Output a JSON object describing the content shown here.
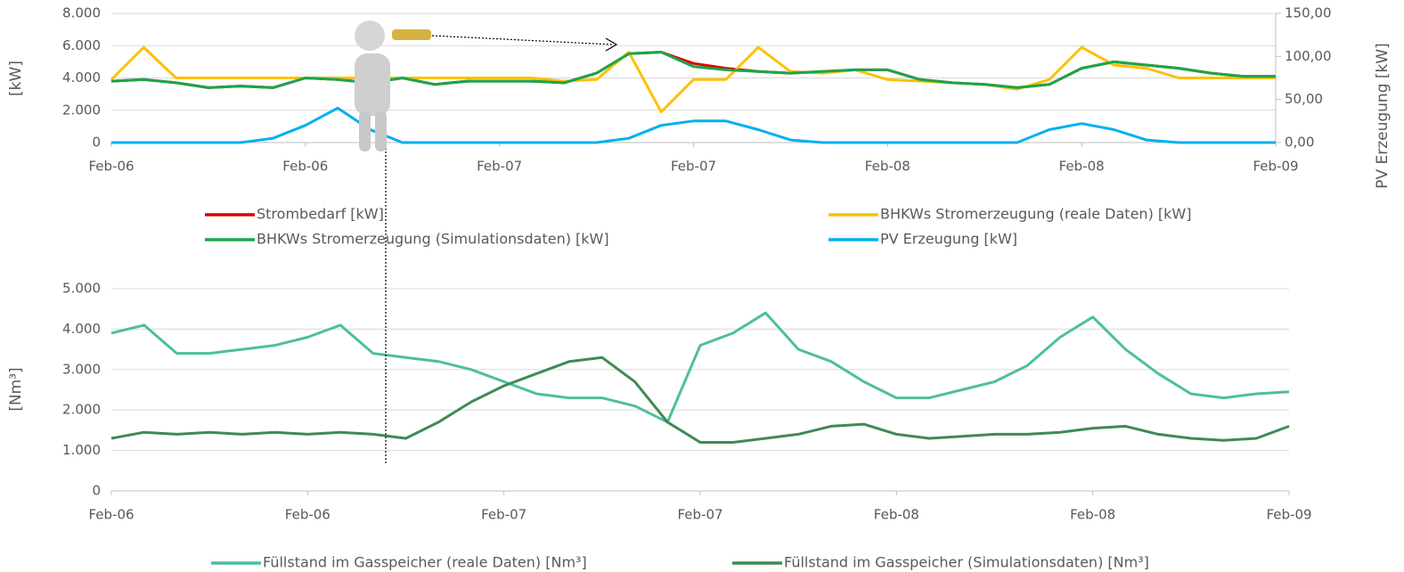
{
  "chart_data": [
    {
      "type": "line",
      "x": [
        0,
        2,
        4,
        6,
        8,
        10,
        12,
        14,
        16,
        18,
        20,
        22,
        24,
        26,
        28,
        30,
        32,
        34,
        36,
        38,
        40,
        42,
        44,
        46,
        48,
        50,
        52,
        54,
        56,
        58,
        60,
        62,
        64,
        66,
        68,
        70,
        72
      ],
      "xlim": [
        0,
        72
      ],
      "xticks": [
        {
          "value": 0,
          "label": "Feb-06"
        },
        {
          "value": 12,
          "label": "Feb-06"
        },
        {
          "value": 24,
          "label": "Feb-07"
        },
        {
          "value": 36,
          "label": "Feb-07"
        },
        {
          "value": 48,
          "label": "Feb-08"
        },
        {
          "value": 60,
          "label": "Feb-08"
        },
        {
          "value": 72,
          "label": "Feb-09"
        }
      ],
      "ylim": [
        0,
        8000
      ],
      "yticks": [
        0,
        {
          "value": 2000,
          "label": "2.000"
        },
        {
          "value": 4000,
          "label": "4.000"
        },
        {
          "value": 6000,
          "label": "6.000"
        },
        {
          "value": 8000,
          "label": "8.000"
        }
      ],
      "y2lim": [
        0,
        150
      ],
      "y2ticks": [
        {
          "value": 0,
          "label": "0,00"
        },
        {
          "value": 50,
          "label": "50,00"
        },
        {
          "value": 100,
          "label": "100,00"
        },
        {
          "value": 150,
          "label": "150,00"
        }
      ],
      "ylabel": "[kW]",
      "y2label": "PV Erzeugung [kW]",
      "grid": true,
      "series": [
        {
          "name": "Strombedarf [kW]",
          "color": "#e00000",
          "values": [
            3800,
            3900,
            3700,
            3400,
            3500,
            3400,
            4000,
            3900,
            3700,
            4000,
            3600,
            3800,
            3800,
            3800,
            3700,
            4300,
            5500,
            5600,
            4900,
            4600,
            4400,
            4300,
            4400,
            4500,
            4500,
            3900,
            3700,
            3600,
            3400,
            3600,
            4600,
            5000,
            4800,
            4600,
            4300,
            4100,
            4100
          ]
        },
        {
          "name": "BHKWs Stromerzeugung (reale Daten) [kW]",
          "color": "#ffc000",
          "values": [
            3900,
            5900,
            4000,
            4000,
            4000,
            4000,
            4000,
            4000,
            4000,
            4000,
            4000,
            4000,
            4000,
            4000,
            3800,
            3900,
            5600,
            1900,
            3900,
            3900,
            5900,
            4400,
            4300,
            4500,
            3900,
            3800,
            3700,
            3600,
            3300,
            3900,
            5900,
            4800,
            4600,
            4000,
            4000,
            4000,
            4000
          ]
        },
        {
          "name": "BHKWs Stromerzeugung (Simulationsdaten) [kW]",
          "color": "#1aa64a",
          "values": [
            3800,
            3900,
            3700,
            3400,
            3500,
            3400,
            4000,
            3900,
            3700,
            4000,
            3600,
            3800,
            3800,
            3800,
            3700,
            4300,
            5500,
            5600,
            4700,
            4500,
            4400,
            4300,
            4400,
            4500,
            4500,
            3900,
            3700,
            3600,
            3400,
            3600,
            4600,
            5000,
            4800,
            4600,
            4300,
            4100,
            4100
          ]
        },
        {
          "name": "PV Erzeugung [kW]",
          "color": "#00b0f0",
          "axis": "y2",
          "values": [
            0,
            0,
            0,
            0,
            0,
            5,
            20,
            40,
            15,
            0,
            0,
            0,
            0,
            0,
            0,
            0,
            5,
            20,
            25,
            25,
            15,
            3,
            0,
            0,
            0,
            0,
            0,
            0,
            0,
            15,
            22,
            15,
            3,
            0,
            0,
            0,
            0
          ]
        }
      ]
    },
    {
      "type": "line",
      "x": [
        0,
        2,
        4,
        6,
        8,
        10,
        12,
        14,
        16,
        18,
        20,
        22,
        24,
        26,
        28,
        30,
        32,
        34,
        36,
        38,
        40,
        42,
        44,
        46,
        48,
        50,
        52,
        54,
        56,
        58,
        60,
        62,
        64,
        66,
        68,
        70,
        72
      ],
      "xlim": [
        0,
        72
      ],
      "xticks": [
        {
          "value": 0,
          "label": "Feb-06"
        },
        {
          "value": 12,
          "label": "Feb-06"
        },
        {
          "value": 24,
          "label": "Feb-07"
        },
        {
          "value": 36,
          "label": "Feb-07"
        },
        {
          "value": 48,
          "label": "Feb-08"
        },
        {
          "value": 60,
          "label": "Feb-08"
        },
        {
          "value": 72,
          "label": "Feb-09"
        }
      ],
      "ylim": [
        0,
        5000
      ],
      "yticks": [
        0,
        {
          "value": 1000,
          "label": "1.000"
        },
        {
          "value": 2000,
          "label": "2.000"
        },
        {
          "value": 3000,
          "label": "3.000"
        },
        {
          "value": 4000,
          "label": "4.000"
        },
        {
          "value": 5000,
          "label": "5.000"
        }
      ],
      "ylabel": "[Nm³]",
      "grid": true,
      "series": [
        {
          "name": "Füllstand im Gasspeicher (reale Daten) [Nm³]",
          "color": "#4dbf9a",
          "values": [
            3900,
            4100,
            3400,
            3400,
            3500,
            3600,
            3800,
            4100,
            3400,
            3300,
            3200,
            3000,
            2700,
            2400,
            2300,
            2300,
            2100,
            1700,
            3600,
            3900,
            4400,
            3500,
            3200,
            2700,
            2300,
            2300,
            2500,
            2700,
            3100,
            3800,
            4300,
            3500,
            2900,
            2400,
            2300,
            2400,
            2450
          ]
        },
        {
          "name": "Füllstand im Gasspeicher (Simulationsdaten) [Nm³]",
          "color": "#3f8a55",
          "values": [
            1300,
            1450,
            1400,
            1450,
            1400,
            1450,
            1400,
            1450,
            1400,
            1300,
            1700,
            2200,
            2600,
            2900,
            3200,
            3300,
            2700,
            1700,
            1200,
            1200,
            1300,
            1400,
            1600,
            1650,
            1400,
            1300,
            1350,
            1400,
            1400,
            1450,
            1550,
            1600,
            1400,
            1300,
            1250,
            1300,
            1600
          ]
        }
      ]
    }
  ]
}
